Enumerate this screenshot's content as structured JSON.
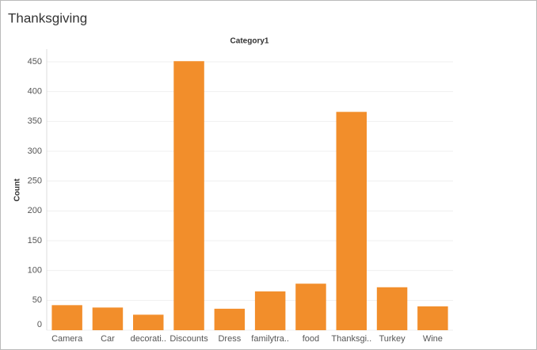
{
  "title": "Thanksgiving",
  "chart_data": {
    "type": "bar",
    "header": "Category1",
    "y_label": "Count",
    "categories": [
      "Camera",
      "Car",
      "decorati..",
      "Discounts",
      "Dress",
      "familytra..",
      "food",
      "Thanksgi..",
      "Turkey",
      "Wine"
    ],
    "values": [
      42,
      38,
      26,
      451,
      36,
      65,
      78,
      366,
      72,
      40
    ],
    "color": "#f28e2b",
    "ylim": [
      0,
      450
    ],
    "yticks": [
      0,
      50,
      100,
      150,
      200,
      250,
      300,
      350,
      400,
      450
    ],
    "grid": true
  }
}
